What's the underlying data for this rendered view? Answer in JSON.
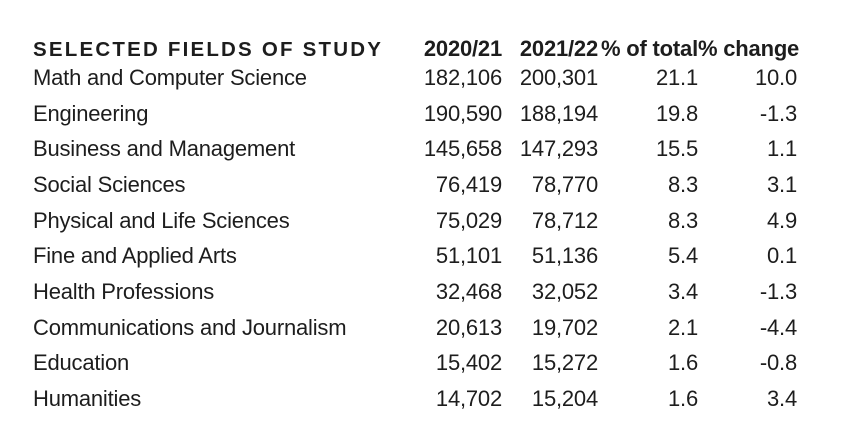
{
  "colors": {
    "background": "#ffffff",
    "text": "#1d1d1d"
  },
  "table": {
    "header": {
      "fields": "SELECTED FIELDS OF STUDY",
      "col_2020_21": "2020/21",
      "col_2021_22": "2021/22",
      "col_pct_total": "% of total",
      "col_pct_change": "% change"
    },
    "rows": [
      {
        "field": "Math and Computer Science",
        "v2020_21": "182,106",
        "v2021_22": "200,301",
        "pct_total": "21.1",
        "pct_change": "10.0"
      },
      {
        "field": "Engineering",
        "v2020_21": "190,590",
        "v2021_22": "188,194",
        "pct_total": "19.8",
        "pct_change": "-1.3"
      },
      {
        "field": "Business and Management",
        "v2020_21": "145,658",
        "v2021_22": "147,293",
        "pct_total": "15.5",
        "pct_change": "1.1"
      },
      {
        "field": "Social Sciences",
        "v2020_21": "76,419",
        "v2021_22": "78,770",
        "pct_total": "8.3",
        "pct_change": "3.1"
      },
      {
        "field": "Physical and Life Sciences",
        "v2020_21": "75,029",
        "v2021_22": "78,712",
        "pct_total": "8.3",
        "pct_change": "4.9"
      },
      {
        "field": "Fine and Applied Arts",
        "v2020_21": "51,101",
        "v2021_22": "51,136",
        "pct_total": "5.4",
        "pct_change": "0.1"
      },
      {
        "field": "Health Professions",
        "v2020_21": "32,468",
        "v2021_22": "32,052",
        "pct_total": "3.4",
        "pct_change": "-1.3"
      },
      {
        "field": "Communications and Journalism",
        "v2020_21": "20,613",
        "v2021_22": "19,702",
        "pct_total": "2.1",
        "pct_change": "-4.4"
      },
      {
        "field": "Education",
        "v2020_21": "15,402",
        "v2021_22": "15,272",
        "pct_total": "1.6",
        "pct_change": "-0.8"
      },
      {
        "field": "Humanities",
        "v2020_21": "14,702",
        "v2021_22": "15,204",
        "pct_total": "1.6",
        "pct_change": "3.4"
      }
    ]
  },
  "chart_data": {
    "type": "table",
    "title": "SELECTED FIELDS OF STUDY",
    "columns": [
      "SELECTED FIELDS OF STUDY",
      "2020/21",
      "2021/22",
      "% of total",
      "% change"
    ],
    "rows": [
      [
        "Math and Computer Science",
        182106,
        200301,
        21.1,
        10.0
      ],
      [
        "Engineering",
        190590,
        188194,
        19.8,
        -1.3
      ],
      [
        "Business and Management",
        145658,
        147293,
        15.5,
        1.1
      ],
      [
        "Social Sciences",
        76419,
        78770,
        8.3,
        3.1
      ],
      [
        "Physical and Life Sciences",
        75029,
        78712,
        8.3,
        4.9
      ],
      [
        "Fine and Applied Arts",
        51101,
        51136,
        5.4,
        0.1
      ],
      [
        "Health Professions",
        32468,
        32052,
        3.4,
        -1.3
      ],
      [
        "Communications and Journalism",
        20613,
        19702,
        2.1,
        -4.4
      ],
      [
        "Education",
        15402,
        15272,
        1.6,
        -0.8
      ],
      [
        "Humanities",
        14702,
        15204,
        1.6,
        3.4
      ]
    ]
  }
}
